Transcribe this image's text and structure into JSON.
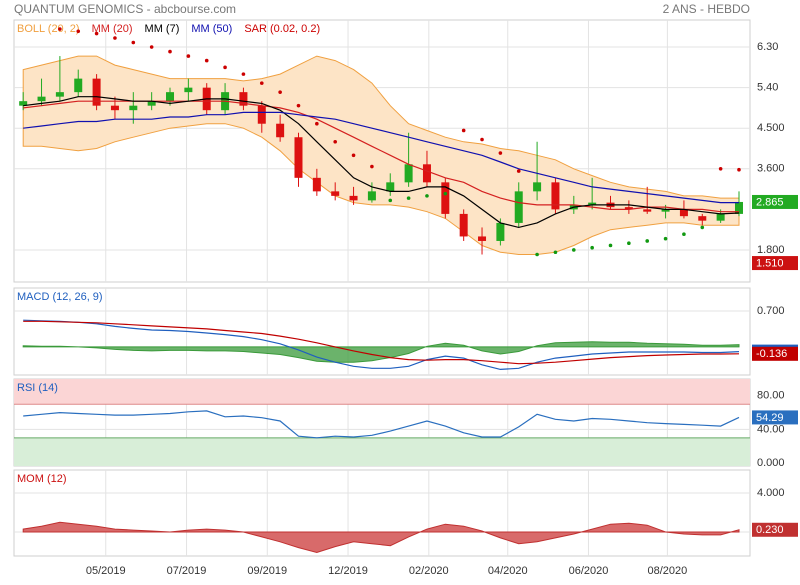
{
  "chart_data": [
    {
      "type": "candlestick",
      "title": "QUANTUM GENOMICS - abcbourse.com",
      "subtitle": "2 ANS - HEBDO",
      "xlim": [
        -0.5,
        39.6
      ],
      "xticks": [
        {
          "value": 4.5,
          "label": "05/2019"
        },
        {
          "value": 8.9,
          "label": "07/2019"
        },
        {
          "value": 13.3,
          "label": "09/2019"
        },
        {
          "value": 17.7,
          "label": "12/2019"
        },
        {
          "value": 22.1,
          "label": "02/2020"
        },
        {
          "value": 26.4,
          "label": "04/2020"
        },
        {
          "value": 30.8,
          "label": "06/2020"
        },
        {
          "value": 35.1,
          "label": "08/2020"
        }
      ],
      "ylim": [
        1.09,
        6.9
      ],
      "yticks": [
        {
          "value": 6.3,
          "label": "6.30"
        },
        {
          "value": 5.4,
          "label": "5.40"
        },
        {
          "value": 4.5,
          "label": "4.500"
        },
        {
          "value": 3.6,
          "label": "3.600"
        },
        {
          "value": 1.8,
          "label": "1.800"
        }
      ],
      "up_color": "#22aa22",
      "down_color": "#dd1111",
      "open": [
        5.0,
        5.1,
        5.2,
        5.3,
        5.6,
        5.0,
        4.9,
        5.0,
        5.1,
        5.3,
        5.4,
        4.9,
        5.3,
        5.0,
        4.6,
        4.3,
        3.4,
        3.1,
        3.0,
        2.9,
        3.1,
        3.3,
        3.7,
        3.3,
        2.6,
        2.1,
        2.0,
        2.4,
        3.1,
        3.3,
        2.7,
        2.8,
        2.85,
        2.75,
        2.7,
        2.65,
        2.7,
        2.55,
        2.45,
        2.6
      ],
      "high": [
        5.3,
        5.6,
        6.1,
        5.8,
        5.7,
        5.2,
        5.3,
        5.3,
        5.4,
        5.6,
        5.5,
        5.5,
        5.4,
        5.1,
        4.8,
        4.4,
        3.6,
        3.3,
        3.2,
        3.3,
        3.5,
        4.4,
        4.0,
        3.4,
        2.7,
        2.3,
        2.5,
        3.3,
        4.2,
        3.4,
        3.0,
        3.4,
        3.0,
        2.9,
        3.2,
        2.8,
        2.9,
        2.6,
        2.7,
        3.1
      ],
      "low": [
        4.9,
        5.0,
        5.1,
        5.2,
        4.9,
        4.7,
        4.6,
        4.9,
        5.0,
        5.1,
        4.8,
        4.8,
        4.9,
        4.4,
        4.2,
        3.2,
        3.0,
        2.9,
        2.8,
        2.85,
        3.0,
        3.2,
        3.2,
        2.5,
        2.0,
        1.7,
        1.9,
        2.3,
        2.9,
        2.6,
        2.6,
        2.7,
        2.7,
        2.6,
        2.6,
        2.5,
        2.5,
        2.35,
        2.4,
        2.55
      ],
      "close": [
        5.1,
        5.2,
        5.3,
        5.6,
        5.0,
        4.9,
        5.0,
        5.1,
        5.3,
        5.4,
        4.9,
        5.3,
        5.0,
        4.6,
        4.3,
        3.4,
        3.1,
        3.0,
        2.9,
        3.1,
        3.3,
        3.7,
        3.3,
        2.6,
        2.1,
        2.0,
        2.4,
        3.1,
        3.3,
        2.7,
        2.8,
        2.85,
        2.75,
        2.7,
        2.65,
        2.7,
        2.55,
        2.45,
        2.6,
        2.865
      ],
      "overlays": [
        {
          "name": "BOLL (20, 2)",
          "kind": "band",
          "color": "#f0a040",
          "fill": "#fde4c6",
          "upper": [
            5.8,
            5.9,
            6.0,
            6.1,
            6.1,
            5.9,
            5.8,
            5.7,
            5.6,
            5.6,
            5.6,
            5.6,
            5.55,
            5.6,
            5.7,
            5.9,
            6.1,
            6.0,
            5.8,
            5.5,
            5.0,
            4.6,
            4.45,
            4.3,
            4.2,
            4.15,
            4.05,
            4.0,
            3.9,
            3.8,
            3.6,
            3.45,
            3.3,
            3.2,
            3.15,
            3.1,
            3.0,
            3.0,
            2.95,
            2.95
          ],
          "lower": [
            4.1,
            4.1,
            4.05,
            4.0,
            4.05,
            4.2,
            4.3,
            4.4,
            4.5,
            4.55,
            4.6,
            4.6,
            4.5,
            4.3,
            4.0,
            3.6,
            3.3,
            3.0,
            2.85,
            2.8,
            2.8,
            2.75,
            2.65,
            2.5,
            2.2,
            1.9,
            1.75,
            1.7,
            1.7,
            1.75,
            1.9,
            2.1,
            2.25,
            2.3,
            2.35,
            2.4,
            2.4,
            2.35,
            2.35,
            2.35
          ]
        },
        {
          "name": "MM (20)",
          "kind": "line",
          "color": "#d42020",
          "values": [
            4.95,
            5.0,
            5.05,
            5.1,
            5.1,
            5.1,
            5.1,
            5.1,
            5.1,
            5.1,
            5.1,
            5.1,
            5.05,
            5.0,
            4.95,
            4.85,
            4.7,
            4.5,
            4.3,
            4.1,
            3.9,
            3.7,
            3.55,
            3.4,
            3.3,
            3.1,
            2.95,
            2.85,
            2.8,
            2.8,
            2.8,
            2.75,
            2.7,
            2.7,
            2.75,
            2.75,
            2.7,
            2.7,
            2.65,
            2.65
          ]
        },
        {
          "name": "MM (7)",
          "kind": "line",
          "color": "#000000",
          "values": [
            5.0,
            5.05,
            5.1,
            5.2,
            5.2,
            5.15,
            5.1,
            5.1,
            5.05,
            5.1,
            5.15,
            5.15,
            5.1,
            5.05,
            4.9,
            4.6,
            4.2,
            3.8,
            3.4,
            3.2,
            3.1,
            3.1,
            3.2,
            3.2,
            3.0,
            2.7,
            2.4,
            2.3,
            2.4,
            2.6,
            2.75,
            2.8,
            2.8,
            2.8,
            2.75,
            2.7,
            2.7,
            2.65,
            2.6,
            2.62
          ]
        },
        {
          "name": "MM (50)",
          "kind": "line",
          "color": "#1010b0",
          "values": [
            4.5,
            4.55,
            4.6,
            4.65,
            4.65,
            4.7,
            4.7,
            4.7,
            4.75,
            4.75,
            4.8,
            4.8,
            4.85,
            4.85,
            4.85,
            4.8,
            4.75,
            4.7,
            4.6,
            4.5,
            4.4,
            4.3,
            4.2,
            4.1,
            4.0,
            3.9,
            3.75,
            3.6,
            3.5,
            3.4,
            3.3,
            3.2,
            3.15,
            3.1,
            3.05,
            3.0,
            2.95,
            2.9,
            2.85,
            2.85
          ]
        },
        {
          "name": "SAR (0.02, 0.2)",
          "kind": "dots",
          "color": "#cc0000",
          "below_color": "#119911",
          "values": [
            null,
            null,
            6.7,
            6.65,
            6.6,
            6.5,
            6.4,
            6.3,
            6.2,
            6.1,
            6.0,
            5.85,
            5.7,
            5.5,
            5.3,
            5.0,
            4.6,
            4.2,
            3.9,
            3.65,
            2.9,
            2.95,
            3.0,
            3.05,
            4.45,
            4.25,
            3.95,
            3.55,
            1.7,
            1.75,
            1.8,
            1.85,
            1.9,
            1.95,
            2.0,
            2.05,
            2.15,
            2.3,
            3.6,
            3.58
          ]
        }
      ],
      "tags": [
        {
          "value": 1.51,
          "label": "1.510",
          "color": "#cc1111"
        }
      ]
    },
    {
      "type": "macd",
      "name": "MACD (12, 26, 9)",
      "name_color": "#1f5fbf",
      "ylim": [
        -0.55,
        1.15
      ],
      "yticks": [
        {
          "value": 0.7,
          "label": "0.700"
        }
      ],
      "series": [
        {
          "color": "#1f5fbf",
          "values": [
            0.52,
            0.51,
            0.5,
            0.48,
            0.45,
            0.4,
            0.36,
            0.33,
            0.32,
            0.3,
            0.27,
            0.24,
            0.2,
            0.14,
            0.06,
            -0.06,
            -0.2,
            -0.3,
            -0.38,
            -0.42,
            -0.42,
            -0.38,
            -0.25,
            -0.18,
            -0.22,
            -0.35,
            -0.44,
            -0.42,
            -0.3,
            -0.22,
            -0.18,
            -0.14,
            -0.12,
            -0.1,
            -0.1,
            -0.1,
            -0.1,
            -0.11,
            -0.11,
            -0.093
          ]
        },
        {
          "color": "#c00000",
          "values": [
            0.5,
            0.5,
            0.49,
            0.48,
            0.47,
            0.45,
            0.43,
            0.41,
            0.39,
            0.37,
            0.35,
            0.32,
            0.29,
            0.26,
            0.21,
            0.15,
            0.08,
            0.0,
            -0.08,
            -0.15,
            -0.21,
            -0.25,
            -0.26,
            -0.25,
            -0.25,
            -0.27,
            -0.3,
            -0.33,
            -0.32,
            -0.3,
            -0.27,
            -0.24,
            -0.21,
            -0.19,
            -0.17,
            -0.16,
            -0.15,
            -0.14,
            -0.14,
            -0.136
          ]
        }
      ],
      "histogram": {
        "color": "#3a9a3a",
        "values": [
          0.02,
          0.01,
          0.01,
          0,
          -0.02,
          -0.05,
          -0.07,
          -0.08,
          -0.07,
          -0.07,
          -0.08,
          -0.08,
          -0.09,
          -0.12,
          -0.15,
          -0.21,
          -0.28,
          -0.3,
          -0.3,
          -0.27,
          -0.21,
          -0.13,
          0.01,
          0.07,
          0.03,
          -0.08,
          -0.14,
          -0.09,
          0.02,
          0.08,
          0.09,
          0.1,
          0.09,
          0.09,
          0.07,
          0.06,
          0.05,
          0.03,
          0.03,
          0.043
        ]
      }
    },
    {
      "type": "rsi",
      "name": "RSI (14)",
      "name_color": "#1f5fbf",
      "ylim": [
        -3.5,
        100
      ],
      "yticks": [
        {
          "value": 80,
          "label": "80.00"
        },
        {
          "value": 40,
          "label": "40.00"
        },
        {
          "value": 0,
          "label": "0.000"
        }
      ],
      "overbought": 70,
      "oversold": 30,
      "overbought_color": "#fbd5d5",
      "oversold_color": "#d8eed8",
      "color": "#2a6fbf",
      "values": [
        56,
        58,
        60,
        59,
        58,
        57,
        57,
        58,
        59,
        61,
        62,
        55,
        56,
        54,
        50,
        32,
        30,
        32,
        31,
        33,
        38,
        44,
        50,
        44,
        36,
        31,
        31,
        43,
        58,
        52,
        50,
        53,
        52,
        50,
        48,
        47,
        46,
        45,
        44,
        54.29
      ]
    },
    {
      "type": "momentum",
      "name": "MOM (12)",
      "name_color": "#cc1111",
      "ylim": [
        -2.46,
        6.36
      ],
      "yticks": [
        {
          "value": 4,
          "label": "4.000"
        },
        {
          "value": 0,
          "label": "0.000"
        }
      ],
      "color": "#c03030",
      "fill": "#d86a6a",
      "values": [
        0.3,
        0.6,
        1.0,
        0.8,
        0.6,
        0.3,
        0.2,
        0.1,
        0.0,
        0.2,
        0.3,
        0.2,
        0.0,
        -0.5,
        -1.0,
        -1.6,
        -2.1,
        -1.5,
        -1.0,
        -1.2,
        -1.4,
        -0.5,
        0.3,
        0.8,
        0.6,
        0.1,
        -0.6,
        -1.2,
        -1.0,
        -0.6,
        -0.2,
        0.3,
        0.8,
        0.9,
        0.7,
        0.0,
        -0.2,
        -0.3,
        -0.3,
        0.23
      ],
      "value_label": "0.230"
    }
  ]
}
